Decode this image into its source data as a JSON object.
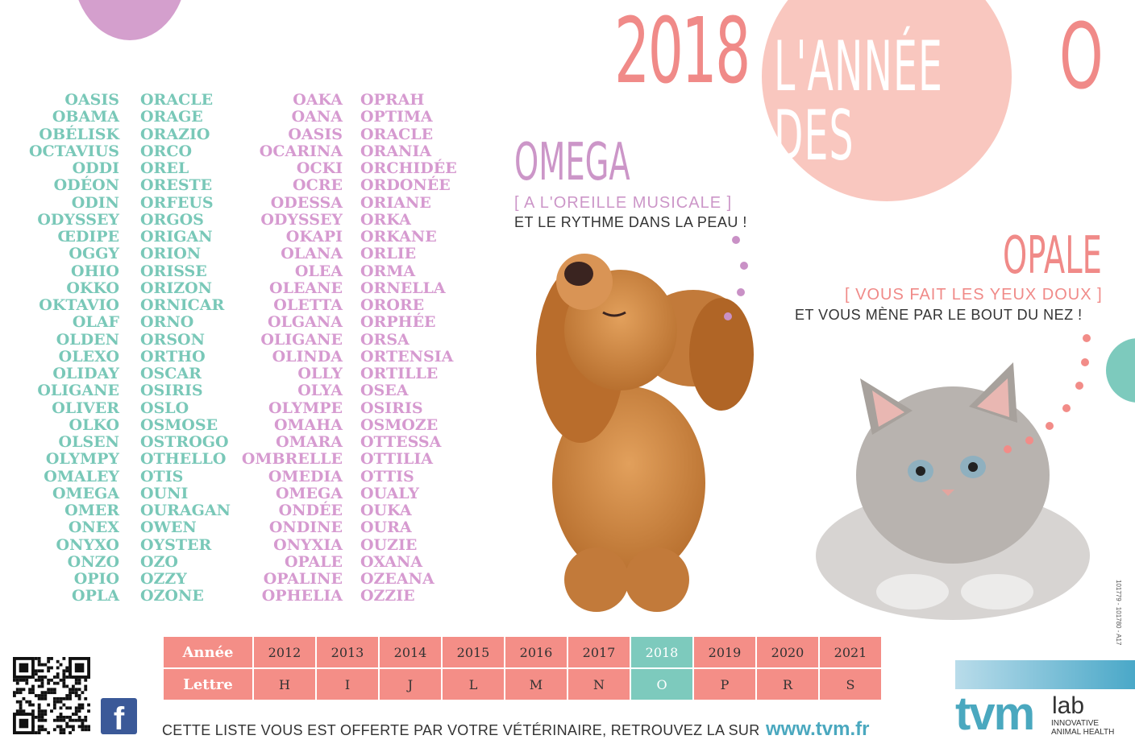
{
  "title": {
    "year": "2018",
    "middle": "L'ANNÉE DES",
    "letter": "O"
  },
  "columns": [
    [
      "OASIS",
      "OBAMA",
      "OBÉLISK",
      "OCTAVIUS",
      "ODDI",
      "ODÉON",
      "ODIN",
      "ODYSSEY",
      "ŒDIPE",
      "OGGY",
      "OHIO",
      "OKKO",
      "OKTAVIO",
      "OLAF",
      "OLDEN",
      "OLEXO",
      "OLIDAY",
      "OLIGANE",
      "OLIVER",
      "OLKO",
      "OLSEN",
      "OLYMPY",
      "OMALEY",
      "OMEGA",
      "OMER",
      "ONEX",
      "ONYXO",
      "ONZO",
      "OPIO",
      "OPLA"
    ],
    [
      "ORACLE",
      "ORAGE",
      "ORAZIO",
      "ORCO",
      "OREL",
      "ORESTE",
      "ORFEUS",
      "ORGOS",
      "ORIGAN",
      "ORION",
      "ORISSE",
      "ORIZON",
      "ORNICAR",
      "ORNO",
      "ORSON",
      "ORTHO",
      "OSCAR",
      "OSIRIS",
      "OSLO",
      "OSMOSE",
      "OSTROGO",
      "OTHELLO",
      "OTIS",
      "OUNI",
      "OURAGAN",
      "OWEN",
      "OYSTER",
      "OZO",
      "OZZY",
      "OZONE"
    ],
    [
      "OAKA",
      "OANA",
      "OASIS",
      "OCARINA",
      "OCKI",
      "OCRE",
      "ODESSA",
      "ODYSSEY",
      "OKAPI",
      "OLANA",
      "OLEA",
      "OLEANE",
      "OLETTA",
      "OLGANA",
      "OLIGANE",
      "OLINDA",
      "OLLY",
      "OLYA",
      "OLYMPE",
      "OMAHA",
      "OMARA",
      "OMBRELLE",
      "OMEDIA",
      "OMEGA",
      "ONDÉE",
      "ONDINE",
      "ONYXIA",
      "OPALE",
      "OPALINE",
      "OPHELIA"
    ],
    [
      "OPRAH",
      "OPTIMA",
      "ORACLE",
      "ORANIA",
      "ORCHIDÉE",
      "ORDONÉE",
      "ORIANE",
      "ORKA",
      "ORKANE",
      "ORLIE",
      "ORMA",
      "ORNELLA",
      "ORORE",
      "ORPHÉE",
      "ORSA",
      "ORTENSIA",
      "ORTILLE",
      "OSEA",
      "OSIRIS",
      "OSMOZE",
      "OTTESSA",
      "OTTILIA",
      "OTTIS",
      "OUALY",
      "OUKA",
      "OURA",
      "OUZIE",
      "OXANA",
      "OZEANA",
      "OZZIE"
    ]
  ],
  "omega": {
    "name": "OMEGA",
    "tag": "[ A L'OREILLE MUSICALE ]",
    "line": "ET LE RYTHME DANS LA PEAU !"
  },
  "opale": {
    "name": "OPALE",
    "tag": "[ VOUS FAIT LES YEUX DOUX ]",
    "line": "ET VOUS MÈNE PAR LE BOUT DU NEZ !"
  },
  "table": {
    "row1_label": "Année",
    "row2_label": "Lettre",
    "years": [
      "2012",
      "2013",
      "2014",
      "2015",
      "2016",
      "2017",
      "2018",
      "2019",
      "2020",
      "2021"
    ],
    "letters": [
      "H",
      "I",
      "J",
      "L",
      "M",
      "N",
      "O",
      "P",
      "R",
      "S"
    ],
    "current_index": 6,
    "colors": {
      "cell": "#f48e87",
      "current": "#7dcabd"
    }
  },
  "footer": {
    "text": "CETTE LISTE VOUS EST OFFERTE PAR VOTRE VÉTÉRINAIRE, RETROUVEZ LA SUR",
    "url": "www.tvm.fr"
  },
  "logo": {
    "main": "tvm",
    "lab": "lab",
    "sub1": "INNOVATIVE",
    "sub2": "ANIMAL HEALTH"
  },
  "reference": "101779 - 101780 - A17",
  "icons": {
    "qr": "qr-code-icon",
    "facebook": "facebook-icon"
  }
}
